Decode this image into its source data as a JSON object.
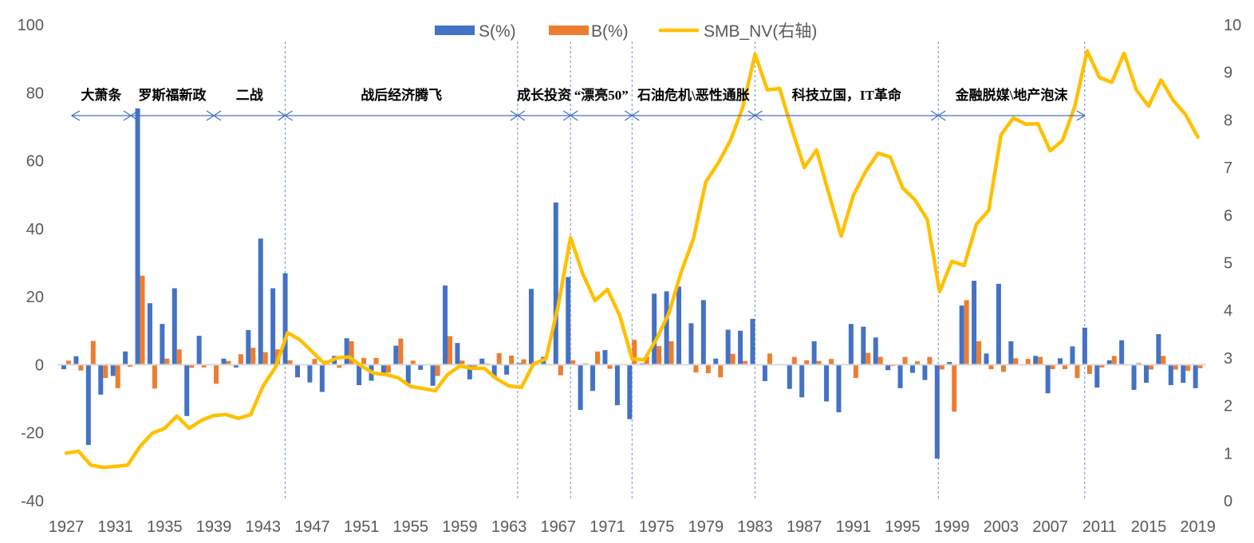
{
  "chart_data": {
    "type": "bar+line",
    "title": "",
    "xlabel": "",
    "ylabel": "",
    "y_left_lim": [
      -40,
      100
    ],
    "y_left_ticks": [
      -40,
      -20,
      0,
      20,
      40,
      60,
      80,
      100
    ],
    "y_right_lim": [
      0,
      10
    ],
    "y_right_ticks": [
      0,
      1,
      2,
      3,
      4,
      5,
      6,
      7,
      8,
      9,
      10
    ],
    "x_start": 1927,
    "x_end": 2019,
    "x_tick_step": 4,
    "grid": false,
    "legend_position": "top-center",
    "colors": {
      "S": "#4472C4",
      "B": "#ED7D31",
      "NV": "#FFC000",
      "axis": "#D9D9D9",
      "divider": "#4472C4"
    },
    "series": [
      {
        "name": "S(%)",
        "type": "bar",
        "axis": "left",
        "values": [
          -1.3,
          2.5,
          -23.6,
          -8.8,
          -3.3,
          3.9,
          75.4,
          18.1,
          12,
          22.5,
          -15.1,
          8.5,
          0,
          1.8,
          -0.8,
          10.2,
          37.1,
          22.5,
          26.9,
          -3.7,
          -5.2,
          -8,
          2.6,
          7.8,
          -6,
          -4.7,
          -2.7,
          5.6,
          -5.5,
          -1.5,
          -6.2,
          23.3,
          6.4,
          -4.3,
          1.8,
          -3.9,
          -2.9,
          0.5,
          22.3,
          2.3,
          47.7,
          25.8,
          -13.3,
          -7.7,
          4.3,
          -11.9,
          -16,
          0.4,
          20.9,
          21.6,
          23,
          12.2,
          19,
          1.8,
          10.3,
          10,
          13.5,
          -4.8,
          0,
          -7.1,
          -9.6,
          6.9,
          -10.8,
          -14,
          12,
          11.2,
          8,
          -1.6,
          -6.9,
          -2.4,
          -4.5,
          -27.6,
          0.8,
          17.4,
          24.7,
          3.3,
          23.8,
          6.9,
          0,
          2.6,
          -8.4,
          1.9,
          5.4,
          10.9,
          -6.7,
          1.3,
          7.2,
          -7.4,
          -5.3,
          9,
          -6,
          -5.3,
          -6.9
        ]
      },
      {
        "name": "B(%)",
        "type": "bar",
        "axis": "left",
        "values": [
          1.2,
          -1.7,
          7,
          -3.9,
          -6.9,
          -0.6,
          26.2,
          -7,
          1.8,
          4.5,
          -0.9,
          -0.8,
          -5.6,
          1.1,
          3.1,
          5,
          3.7,
          4.5,
          1.3,
          0.2,
          1.7,
          1.2,
          -0.9,
          6.9,
          2,
          2,
          -2.3,
          7.7,
          1.2,
          0,
          -3.3,
          8.4,
          1.2,
          -1.4,
          0.4,
          3.4,
          2.7,
          1.6,
          0,
          0,
          -3.1,
          1.3,
          0.4,
          3.9,
          -1.2,
          0,
          7.3,
          2.3,
          5.5,
          6.9,
          0,
          -2.3,
          -2.5,
          -3.7,
          3.2,
          1.1,
          0,
          3.3,
          0,
          2.3,
          1.3,
          1.1,
          1.7,
          0,
          -3.9,
          3.5,
          2.3,
          -0.4,
          2.3,
          1,
          2.3,
          -1.4,
          -13.8,
          19,
          6.9,
          -1.3,
          -2.1,
          1.9,
          1.7,
          2.3,
          -1.3,
          -1.3,
          -3.9,
          -2.7,
          -0.8,
          2.6,
          0,
          0.5,
          -1.4,
          2.6,
          -1.4,
          -1.8,
          -1
        ]
      },
      {
        "name": "SMB_NV(右轴)",
        "type": "line",
        "axis": "right",
        "values": [
          1.0,
          1.04,
          0.75,
          0.7,
          0.72,
          0.75,
          1.14,
          1.42,
          1.52,
          1.78,
          1.52,
          1.69,
          1.79,
          1.81,
          1.73,
          1.81,
          2.41,
          2.8,
          3.53,
          3.38,
          3.13,
          2.88,
          3.0,
          3.02,
          2.83,
          2.68,
          2.65,
          2.58,
          2.4,
          2.36,
          2.31,
          2.65,
          2.83,
          2.78,
          2.78,
          2.56,
          2.41,
          2.38,
          2.88,
          2.98,
          4.1,
          5.53,
          4.76,
          4.2,
          4.44,
          3.89,
          2.98,
          2.96,
          3.4,
          3.94,
          4.81,
          5.51,
          6.7,
          7.09,
          7.57,
          8.26,
          9.38,
          8.63,
          8.66,
          7.8,
          7.0,
          7.37,
          6.45,
          5.56,
          6.42,
          6.92,
          7.3,
          7.22,
          6.57,
          6.32,
          5.91,
          4.39,
          5.03,
          4.94,
          5.81,
          6.1,
          7.69,
          8.04,
          7.91,
          7.92,
          7.35,
          7.57,
          8.29,
          9.45,
          8.89,
          8.79,
          9.4,
          8.63,
          8.29,
          8.84,
          8.41,
          8.11,
          7.64
        ]
      }
    ],
    "periods": [
      {
        "label": "大萧条",
        "start": 1927.45,
        "end": 1932.25
      },
      {
        "label": "罗斯福新政",
        "start": 1932.25,
        "end": 1939
      },
      {
        "label": "二战",
        "start": 1939,
        "end": 1944.8
      },
      {
        "label": "战后经济腾飞",
        "start": 1944.8,
        "end": 1963.7
      },
      {
        "label": "成长投资",
        "start": 1963.7,
        "end": 1968
      },
      {
        "label": "“漂亮50”",
        "start": 1968,
        "end": 1973
      },
      {
        "label": "石油危机\\恶性通胀",
        "start": 1973,
        "end": 1983
      },
      {
        "label": "科技立国，IT革命",
        "start": 1983,
        "end": 1997.9
      },
      {
        "label": "金融脱媒\\地产泡沫",
        "start": 1997.9,
        "end": 2009.8
      }
    ],
    "dividers": [
      1944.8,
      1963.7,
      1968,
      1973,
      1983,
      1997.9,
      2009.8
    ]
  }
}
